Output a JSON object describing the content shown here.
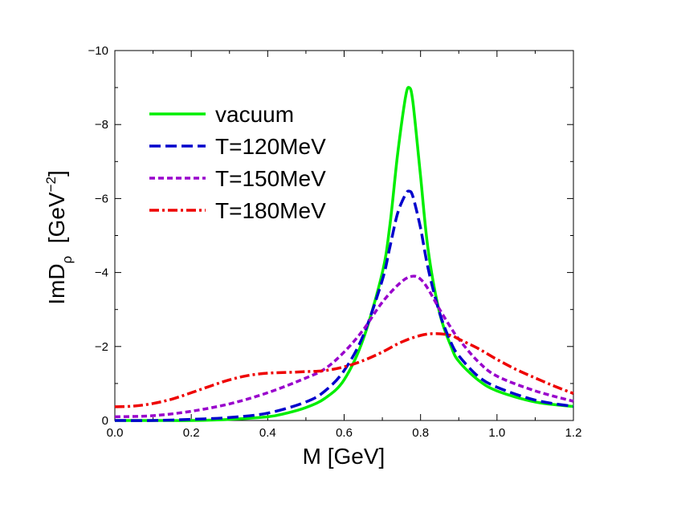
{
  "chart_data": {
    "type": "line",
    "xlabel": "M [GeV]",
    "ylabel": {
      "base": "ImD",
      "sub": "ρ",
      "unit_open": "  [GeV",
      "unit_sup": "−2",
      "unit_close": "]"
    },
    "xlim": [
      0.0,
      1.2
    ],
    "ylim": [
      0,
      -10
    ],
    "x_ticks": [
      "0.0",
      "0.2",
      "0.4",
      "0.6",
      "0.8",
      "1.0",
      "1.2"
    ],
    "y_ticks": [
      "0",
      "−2",
      "−4",
      "−6",
      "−8",
      "−10"
    ],
    "grid": false,
    "legend_position": "upper-left",
    "series": [
      {
        "name": "vacuum",
        "color": "#00ee00",
        "dash": "solid",
        "x": [
          0.0,
          0.1,
          0.2,
          0.3,
          0.4,
          0.45,
          0.5,
          0.55,
          0.6,
          0.65,
          0.7,
          0.72,
          0.74,
          0.76,
          0.77,
          0.78,
          0.8,
          0.82,
          0.85,
          0.88,
          0.9,
          0.95,
          1.0,
          1.1,
          1.2
        ],
        "y": [
          0.0,
          0.0,
          0.0,
          -0.03,
          -0.1,
          -0.2,
          -0.35,
          -0.6,
          -1.1,
          -2.2,
          -4.0,
          -5.3,
          -7.2,
          -8.7,
          -9.0,
          -8.6,
          -6.6,
          -4.6,
          -2.9,
          -2.0,
          -1.6,
          -1.1,
          -0.8,
          -0.5,
          -0.38
        ]
      },
      {
        "name": "T=120MeV",
        "color": "#0000cc",
        "dash": "long-dash",
        "x": [
          0.0,
          0.1,
          0.2,
          0.3,
          0.4,
          0.5,
          0.55,
          0.6,
          0.65,
          0.7,
          0.72,
          0.74,
          0.76,
          0.77,
          0.78,
          0.8,
          0.82,
          0.85,
          0.88,
          0.9,
          0.95,
          1.0,
          1.1,
          1.2
        ],
        "y": [
          0.0,
          0.0,
          -0.03,
          -0.08,
          -0.2,
          -0.5,
          -0.8,
          -1.35,
          -2.3,
          -3.8,
          -4.7,
          -5.6,
          -6.1,
          -6.2,
          -6.05,
          -5.2,
          -4.1,
          -2.9,
          -2.1,
          -1.75,
          -1.2,
          -0.9,
          -0.55,
          -0.38
        ]
      },
      {
        "name": "T=150MeV",
        "color": "#9900cc",
        "dash": "short-dash",
        "x": [
          0.0,
          0.1,
          0.2,
          0.3,
          0.4,
          0.5,
          0.55,
          0.6,
          0.65,
          0.7,
          0.75,
          0.78,
          0.8,
          0.82,
          0.85,
          0.88,
          0.9,
          0.95,
          1.0,
          1.1,
          1.2
        ],
        "y": [
          -0.1,
          -0.13,
          -0.25,
          -0.45,
          -0.75,
          -1.15,
          -1.4,
          -1.85,
          -2.45,
          -3.2,
          -3.75,
          -3.9,
          -3.82,
          -3.55,
          -3.0,
          -2.5,
          -2.2,
          -1.6,
          -1.2,
          -0.8,
          -0.52
        ]
      },
      {
        "name": "T=180MeV",
        "color": "#ee0000",
        "dash": "dash-dot",
        "x": [
          0.0,
          0.05,
          0.1,
          0.15,
          0.2,
          0.25,
          0.3,
          0.35,
          0.4,
          0.45,
          0.5,
          0.55,
          0.6,
          0.65,
          0.7,
          0.75,
          0.8,
          0.84,
          0.88,
          0.9,
          0.95,
          1.0,
          1.05,
          1.1,
          1.15,
          1.2
        ],
        "y": [
          -0.37,
          -0.39,
          -0.46,
          -0.58,
          -0.75,
          -0.93,
          -1.1,
          -1.22,
          -1.28,
          -1.3,
          -1.32,
          -1.35,
          -1.45,
          -1.62,
          -1.85,
          -2.12,
          -2.3,
          -2.35,
          -2.3,
          -2.2,
          -1.95,
          -1.65,
          -1.38,
          -1.15,
          -0.93,
          -0.73
        ]
      }
    ]
  }
}
